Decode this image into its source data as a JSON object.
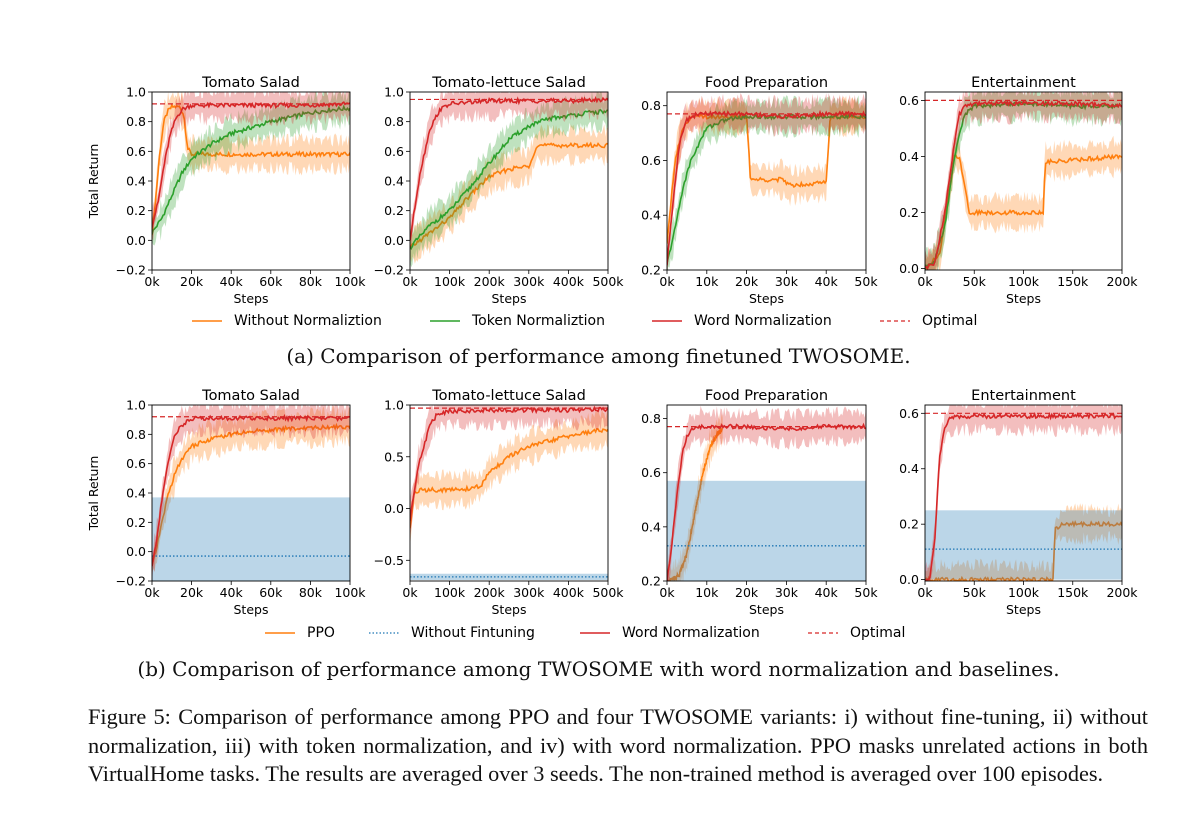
{
  "chart_data": [
    {
      "type": "line",
      "title": "Tomato Salad",
      "ylabel": "Total Return",
      "xlabel": "Steps",
      "xlim": [
        0,
        100000
      ],
      "ylim": [
        -0.2,
        1.0
      ],
      "xticks": [
        "0k",
        "20k",
        "40k",
        "60k",
        "80k",
        "100k"
      ],
      "yticks": [
        "−0.2",
        "0.0",
        "0.2",
        "0.4",
        "0.6",
        "0.8",
        "1.0"
      ],
      "series": [
        {
          "name": "Without Normaliztion",
          "color": "#ff7f0e",
          "band": true,
          "x": [
            0,
            2000,
            4000,
            6000,
            8000,
            10000,
            12000,
            14000,
            16000,
            18000,
            20000,
            100000
          ],
          "y": [
            0.05,
            0.3,
            0.6,
            0.8,
            0.87,
            0.9,
            0.9,
            0.9,
            0.85,
            0.62,
            0.58,
            0.58
          ]
        },
        {
          "name": "Token Normaliztion",
          "color": "#2ca02c",
          "band": true,
          "x": [
            0,
            5000,
            10000,
            15000,
            20000,
            30000,
            40000,
            50000,
            60000,
            70000,
            80000,
            90000,
            100000
          ],
          "y": [
            0.05,
            0.15,
            0.3,
            0.45,
            0.55,
            0.65,
            0.72,
            0.76,
            0.8,
            0.83,
            0.86,
            0.88,
            0.89
          ]
        },
        {
          "name": "Word Normalization",
          "color": "#d62728",
          "band": true,
          "x": [
            0,
            3000,
            6000,
            9000,
            12000,
            15000,
            18000,
            20000,
            60000,
            75000,
            100000
          ],
          "y": [
            0.1,
            0.25,
            0.5,
            0.7,
            0.82,
            0.88,
            0.9,
            0.91,
            0.91,
            0.91,
            0.92
          ]
        }
      ],
      "optimal": 0.92
    },
    {
      "type": "line",
      "title": "Tomato-lettuce Salad",
      "xlabel": "Steps",
      "xlim": [
        0,
        500000
      ],
      "ylim": [
        -0.2,
        1.0
      ],
      "xticks": [
        "0k",
        "100k",
        "200k",
        "300k",
        "400k",
        "500k"
      ],
      "yticks": [
        "−0.2",
        "0.0",
        "0.2",
        "0.4",
        "0.6",
        "0.8",
        "1.0"
      ],
      "series": [
        {
          "name": "Without Normaliztion",
          "color": "#ff7f0e",
          "band": true,
          "x": [
            0,
            50000,
            100000,
            150000,
            200000,
            250000,
            300000,
            320000,
            500000
          ],
          "y": [
            -0.05,
            0.05,
            0.15,
            0.3,
            0.43,
            0.48,
            0.5,
            0.64,
            0.64
          ]
        },
        {
          "name": "Token Normaliztion",
          "color": "#2ca02c",
          "band": true,
          "x": [
            0,
            50000,
            100000,
            150000,
            200000,
            250000,
            300000,
            350000,
            400000,
            450000,
            500000
          ],
          "y": [
            -0.05,
            0.1,
            0.2,
            0.35,
            0.52,
            0.68,
            0.77,
            0.82,
            0.84,
            0.86,
            0.87
          ]
        },
        {
          "name": "Word Normalization",
          "color": "#d62728",
          "band": true,
          "x": [
            0,
            25000,
            50000,
            75000,
            100000,
            150000,
            200000,
            300000,
            400000,
            500000
          ],
          "y": [
            0.0,
            0.45,
            0.75,
            0.88,
            0.92,
            0.93,
            0.94,
            0.94,
            0.94,
            0.95
          ]
        }
      ],
      "optimal": 0.95
    },
    {
      "type": "line",
      "title": "Food Preparation",
      "xlabel": "Steps",
      "xlim": [
        0,
        50000
      ],
      "ylim": [
        0.2,
        0.85
      ],
      "xticks": [
        "0k",
        "10k",
        "20k",
        "30k",
        "40k",
        "50k"
      ],
      "yticks": [
        "0.2",
        "0.4",
        "0.6",
        "0.8"
      ],
      "series": [
        {
          "name": "Without Normaliztion",
          "color": "#ff7f0e",
          "band": true,
          "x": [
            0,
            2000,
            4000,
            6000,
            10000,
            20000,
            21000,
            29000,
            31000,
            40000,
            41000,
            50000
          ],
          "y": [
            0.3,
            0.6,
            0.72,
            0.76,
            0.76,
            0.76,
            0.53,
            0.53,
            0.51,
            0.52,
            0.76,
            0.76
          ]
        },
        {
          "name": "Token Normaliztion",
          "color": "#2ca02c",
          "band": true,
          "x": [
            0,
            2000,
            4000,
            6000,
            8000,
            10000,
            15000,
            20000,
            30000,
            40000,
            50000
          ],
          "y": [
            0.22,
            0.35,
            0.5,
            0.6,
            0.66,
            0.72,
            0.75,
            0.76,
            0.76,
            0.76,
            0.76
          ]
        },
        {
          "name": "Word Normalization",
          "color": "#d62728",
          "band": true,
          "x": [
            0,
            1500,
            3000,
            4500,
            6000,
            8000,
            10000,
            20000,
            30000,
            40000,
            50000
          ],
          "y": [
            0.22,
            0.45,
            0.65,
            0.74,
            0.76,
            0.77,
            0.77,
            0.77,
            0.76,
            0.77,
            0.77
          ]
        }
      ],
      "optimal": 0.77
    },
    {
      "type": "line",
      "title": "Entertainment",
      "xlabel": "Steps",
      "xlim": [
        0,
        200000
      ],
      "ylim": [
        -0.005,
        0.63
      ],
      "xticks": [
        "0k",
        "50k",
        "100k",
        "150k",
        "200k"
      ],
      "yticks": [
        "0.0",
        "0.2",
        "0.4",
        "0.6"
      ],
      "series": [
        {
          "name": "Without Normaliztion",
          "color": "#ff7f0e",
          "band": true,
          "x": [
            0,
            15000,
            30000,
            35000,
            45000,
            50000,
            120000,
            122000,
            200000
          ],
          "y": [
            0.0,
            0.05,
            0.4,
            0.4,
            0.2,
            0.2,
            0.2,
            0.38,
            0.4
          ]
        },
        {
          "name": "Token Normaliztion",
          "color": "#2ca02c",
          "band": true,
          "x": [
            0,
            10000,
            20000,
            30000,
            40000,
            50000,
            100000,
            150000,
            200000
          ],
          "y": [
            0.0,
            0.03,
            0.15,
            0.4,
            0.55,
            0.58,
            0.59,
            0.58,
            0.58
          ]
        },
        {
          "name": "Word Normalization",
          "color": "#d62728",
          "band": true,
          "x": [
            0,
            10000,
            20000,
            30000,
            35000,
            40000,
            50000,
            100000,
            150000,
            200000
          ],
          "y": [
            0.0,
            0.02,
            0.2,
            0.45,
            0.55,
            0.58,
            0.59,
            0.59,
            0.59,
            0.58
          ]
        }
      ],
      "optimal": 0.6
    },
    {
      "type": "line",
      "title": "Tomato Salad",
      "ylabel": "Total Return",
      "xlabel": "Steps",
      "xlim": [
        0,
        100000
      ],
      "ylim": [
        -0.2,
        1.0
      ],
      "xticks": [
        "0k",
        "20k",
        "40k",
        "60k",
        "80k",
        "100k"
      ],
      "yticks": [
        "−0.2",
        "0.0",
        "0.2",
        "0.4",
        "0.6",
        "0.8",
        "1.0"
      ],
      "series": [
        {
          "name": "PPO",
          "color": "#ff7f0e",
          "band": true,
          "x": [
            0,
            2000,
            5000,
            8000,
            12000,
            16000,
            20000,
            30000,
            40000,
            50000,
            60000,
            70000,
            80000,
            90000,
            100000
          ],
          "y": [
            -0.1,
            0.0,
            0.2,
            0.38,
            0.55,
            0.65,
            0.72,
            0.77,
            0.8,
            0.82,
            0.83,
            0.84,
            0.84,
            0.85,
            0.85
          ]
        },
        {
          "name": "Without Fintuning",
          "color": "#1f77b4",
          "band": true,
          "dotted": true,
          "x": [
            0,
            100000
          ],
          "y": [
            -0.03,
            -0.03
          ],
          "band_lo": -0.2,
          "band_hi": 0.37
        },
        {
          "name": "Word Normalization",
          "color": "#d62728",
          "band": true,
          "x": [
            0,
            2000,
            5000,
            8000,
            11000,
            14000,
            18000,
            22000,
            30000,
            70000,
            100000
          ],
          "y": [
            -0.1,
            0.05,
            0.35,
            0.6,
            0.78,
            0.85,
            0.89,
            0.91,
            0.91,
            0.91,
            0.91
          ]
        }
      ],
      "optimal": 0.92
    },
    {
      "type": "line",
      "title": "Tomato-lettuce Salad",
      "xlabel": "Steps",
      "xlim": [
        0,
        500000
      ],
      "ylim": [
        -0.7,
        1.0
      ],
      "xticks": [
        "0k",
        "100k",
        "200k",
        "300k",
        "400k",
        "500k"
      ],
      "yticks": [
        "−0.5",
        "0.0",
        "0.5",
        "1.0"
      ],
      "series": [
        {
          "name": "PPO",
          "color": "#ff7f0e",
          "band": true,
          "x": [
            0,
            10000,
            30000,
            100000,
            150000,
            180000,
            200000,
            250000,
            300000,
            400000,
            500000
          ],
          "y": [
            -0.2,
            0.15,
            0.18,
            0.18,
            0.19,
            0.22,
            0.35,
            0.5,
            0.6,
            0.7,
            0.77
          ]
        },
        {
          "name": "Without Fintuning",
          "color": "#1f77b4",
          "band": true,
          "dotted": true,
          "x": [
            0,
            500000
          ],
          "y": [
            -0.66,
            -0.66
          ],
          "band_lo": -0.69,
          "band_hi": -0.63
        },
        {
          "name": "Word Normalization",
          "color": "#d62728",
          "band": true,
          "x": [
            0,
            20000,
            50000,
            70000,
            100000,
            200000,
            300000,
            400000,
            500000
          ],
          "y": [
            -0.1,
            0.4,
            0.8,
            0.92,
            0.94,
            0.95,
            0.95,
            0.95,
            0.96
          ]
        }
      ],
      "optimal": 0.97
    },
    {
      "type": "line",
      "title": "Food Preparation",
      "xlabel": "Steps",
      "xlim": [
        0,
        50000
      ],
      "ylim": [
        0.2,
        0.85
      ],
      "xticks": [
        "0k",
        "10k",
        "20k",
        "30k",
        "40k",
        "50k"
      ],
      "yticks": [
        "0.2",
        "0.4",
        "0.6",
        "0.8"
      ],
      "series": [
        {
          "name": "PPO",
          "color": "#ff7f0e",
          "band": true,
          "x": [
            0,
            3000,
            5000,
            7000,
            9000,
            11000,
            13000,
            14000
          ],
          "y": [
            0.2,
            0.22,
            0.3,
            0.45,
            0.6,
            0.7,
            0.75,
            0.76
          ]
        },
        {
          "name": "Without Fintuning",
          "color": "#1f77b4",
          "band": true,
          "dotted": true,
          "x": [
            0,
            50000
          ],
          "y": [
            0.33,
            0.33
          ],
          "band_lo": 0.2,
          "band_hi": 0.57
        },
        {
          "name": "Word Normalization",
          "color": "#d62728",
          "band": true,
          "x": [
            0,
            1000,
            2000,
            3000,
            4000,
            5000,
            6000,
            8000,
            10000,
            20000,
            30000,
            40000,
            50000
          ],
          "y": [
            0.2,
            0.3,
            0.45,
            0.58,
            0.68,
            0.73,
            0.76,
            0.77,
            0.77,
            0.77,
            0.76,
            0.77,
            0.77
          ]
        }
      ],
      "optimal": 0.77
    },
    {
      "type": "line",
      "title": "Entertainment",
      "xlabel": "Steps",
      "xlim": [
        0,
        200000
      ],
      "ylim": [
        -0.005,
        0.63
      ],
      "xticks": [
        "0k",
        "50k",
        "100k",
        "150k",
        "200k"
      ],
      "yticks": [
        "0.0",
        "0.2",
        "0.4",
        "0.6"
      ],
      "series": [
        {
          "name": "PPO",
          "color": "#ff7f0e",
          "band": true,
          "x": [
            0,
            130000,
            132000,
            140000,
            200000
          ],
          "y": [
            0.0,
            0.0,
            0.18,
            0.2,
            0.2
          ]
        },
        {
          "name": "Without Fintuning",
          "color": "#1f77b4",
          "band": true,
          "dotted": true,
          "x": [
            0,
            200000
          ],
          "y": [
            0.11,
            0.11
          ],
          "band_lo": 0.0,
          "band_hi": 0.25
        },
        {
          "name": "Word Normalization",
          "color": "#d62728",
          "band": true,
          "x": [
            0,
            5000,
            10000,
            15000,
            20000,
            25000,
            30000,
            50000,
            100000,
            150000,
            200000
          ],
          "y": [
            0.0,
            0.01,
            0.15,
            0.45,
            0.55,
            0.58,
            0.59,
            0.59,
            0.59,
            0.59,
            0.59
          ]
        }
      ],
      "optimal": 0.6
    }
  ],
  "legend_a": [
    "Without Normaliztion",
    "Token Normaliztion",
    "Word Normalization",
    "Optimal"
  ],
  "legend_b": [
    "PPO",
    "Without Fintuning",
    "Word Normalization",
    "Optimal"
  ],
  "caption_a": "(a) Comparison of performance among finetuned TWOSOME.",
  "caption_b": "(b) Comparison of performance among TWOSOME with word normalization and baselines.",
  "figure_caption": "Figure 5: Comparison of performance among PPO and four TWOSOME variants: i) without fine-tuning, ii) without normalization, iii) with token normalization, and iv) with word normalization. PPO masks unrelated actions in both VirtualHome tasks. The results are averaged over 3 seeds. The non-trained method is averaged over 100 episodes.",
  "colors": {
    "orange": "#ff7f0e",
    "green": "#2ca02c",
    "red": "#d62728",
    "blue": "#1f77b4"
  }
}
